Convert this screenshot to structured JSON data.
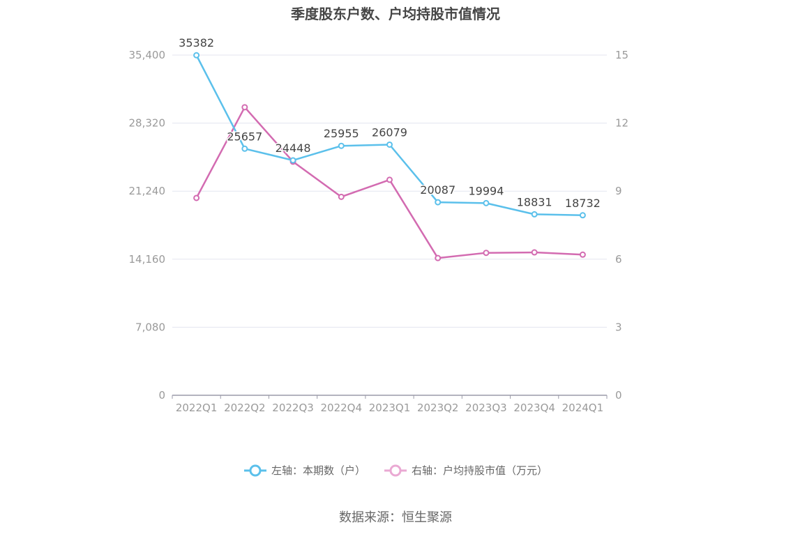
{
  "title": "季度股东户数、户均持股市值情况",
  "source": "数据来源：恒生聚源",
  "colors": {
    "left_series": "#5bc0eb",
    "right_series": "#d36bb1",
    "grid": "#e3e5ef",
    "axis": "#9a9aa8",
    "tick_text": "#9a9a9a",
    "label_text": "#444444"
  },
  "chart_data": {
    "type": "line",
    "title": "季度股东户数、户均持股市值情况",
    "categories": [
      "2022Q1",
      "2022Q2",
      "2022Q3",
      "2022Q4",
      "2023Q1",
      "2023Q2",
      "2023Q3",
      "2023Q4",
      "2024Q1"
    ],
    "left_axis": {
      "ticks": [
        "0",
        "7,080",
        "14,160",
        "21,240",
        "28,320",
        "35,400"
      ],
      "ylim": [
        0,
        35400
      ]
    },
    "right_axis": {
      "ticks": [
        "0",
        "3",
        "6",
        "9",
        "12",
        "15"
      ],
      "ylim": [
        0,
        15
      ]
    },
    "series": [
      {
        "name": "左轴：本期数（户）",
        "axis": "left",
        "values": [
          35382,
          25657,
          24448,
          25955,
          26079,
          20087,
          19994,
          18831,
          18732
        ],
        "labels": [
          "35382",
          "25657",
          "24448",
          "25955",
          "26079",
          "20087",
          "19994",
          "18831",
          "18732"
        ]
      },
      {
        "name": "右轴：户均持股市值（万元）",
        "axis": "right",
        "values": [
          8.7,
          12.7,
          10.3,
          8.75,
          9.5,
          6.05,
          6.28,
          6.3,
          6.2
        ]
      }
    ],
    "grid": true,
    "legend_position": "bottom"
  }
}
